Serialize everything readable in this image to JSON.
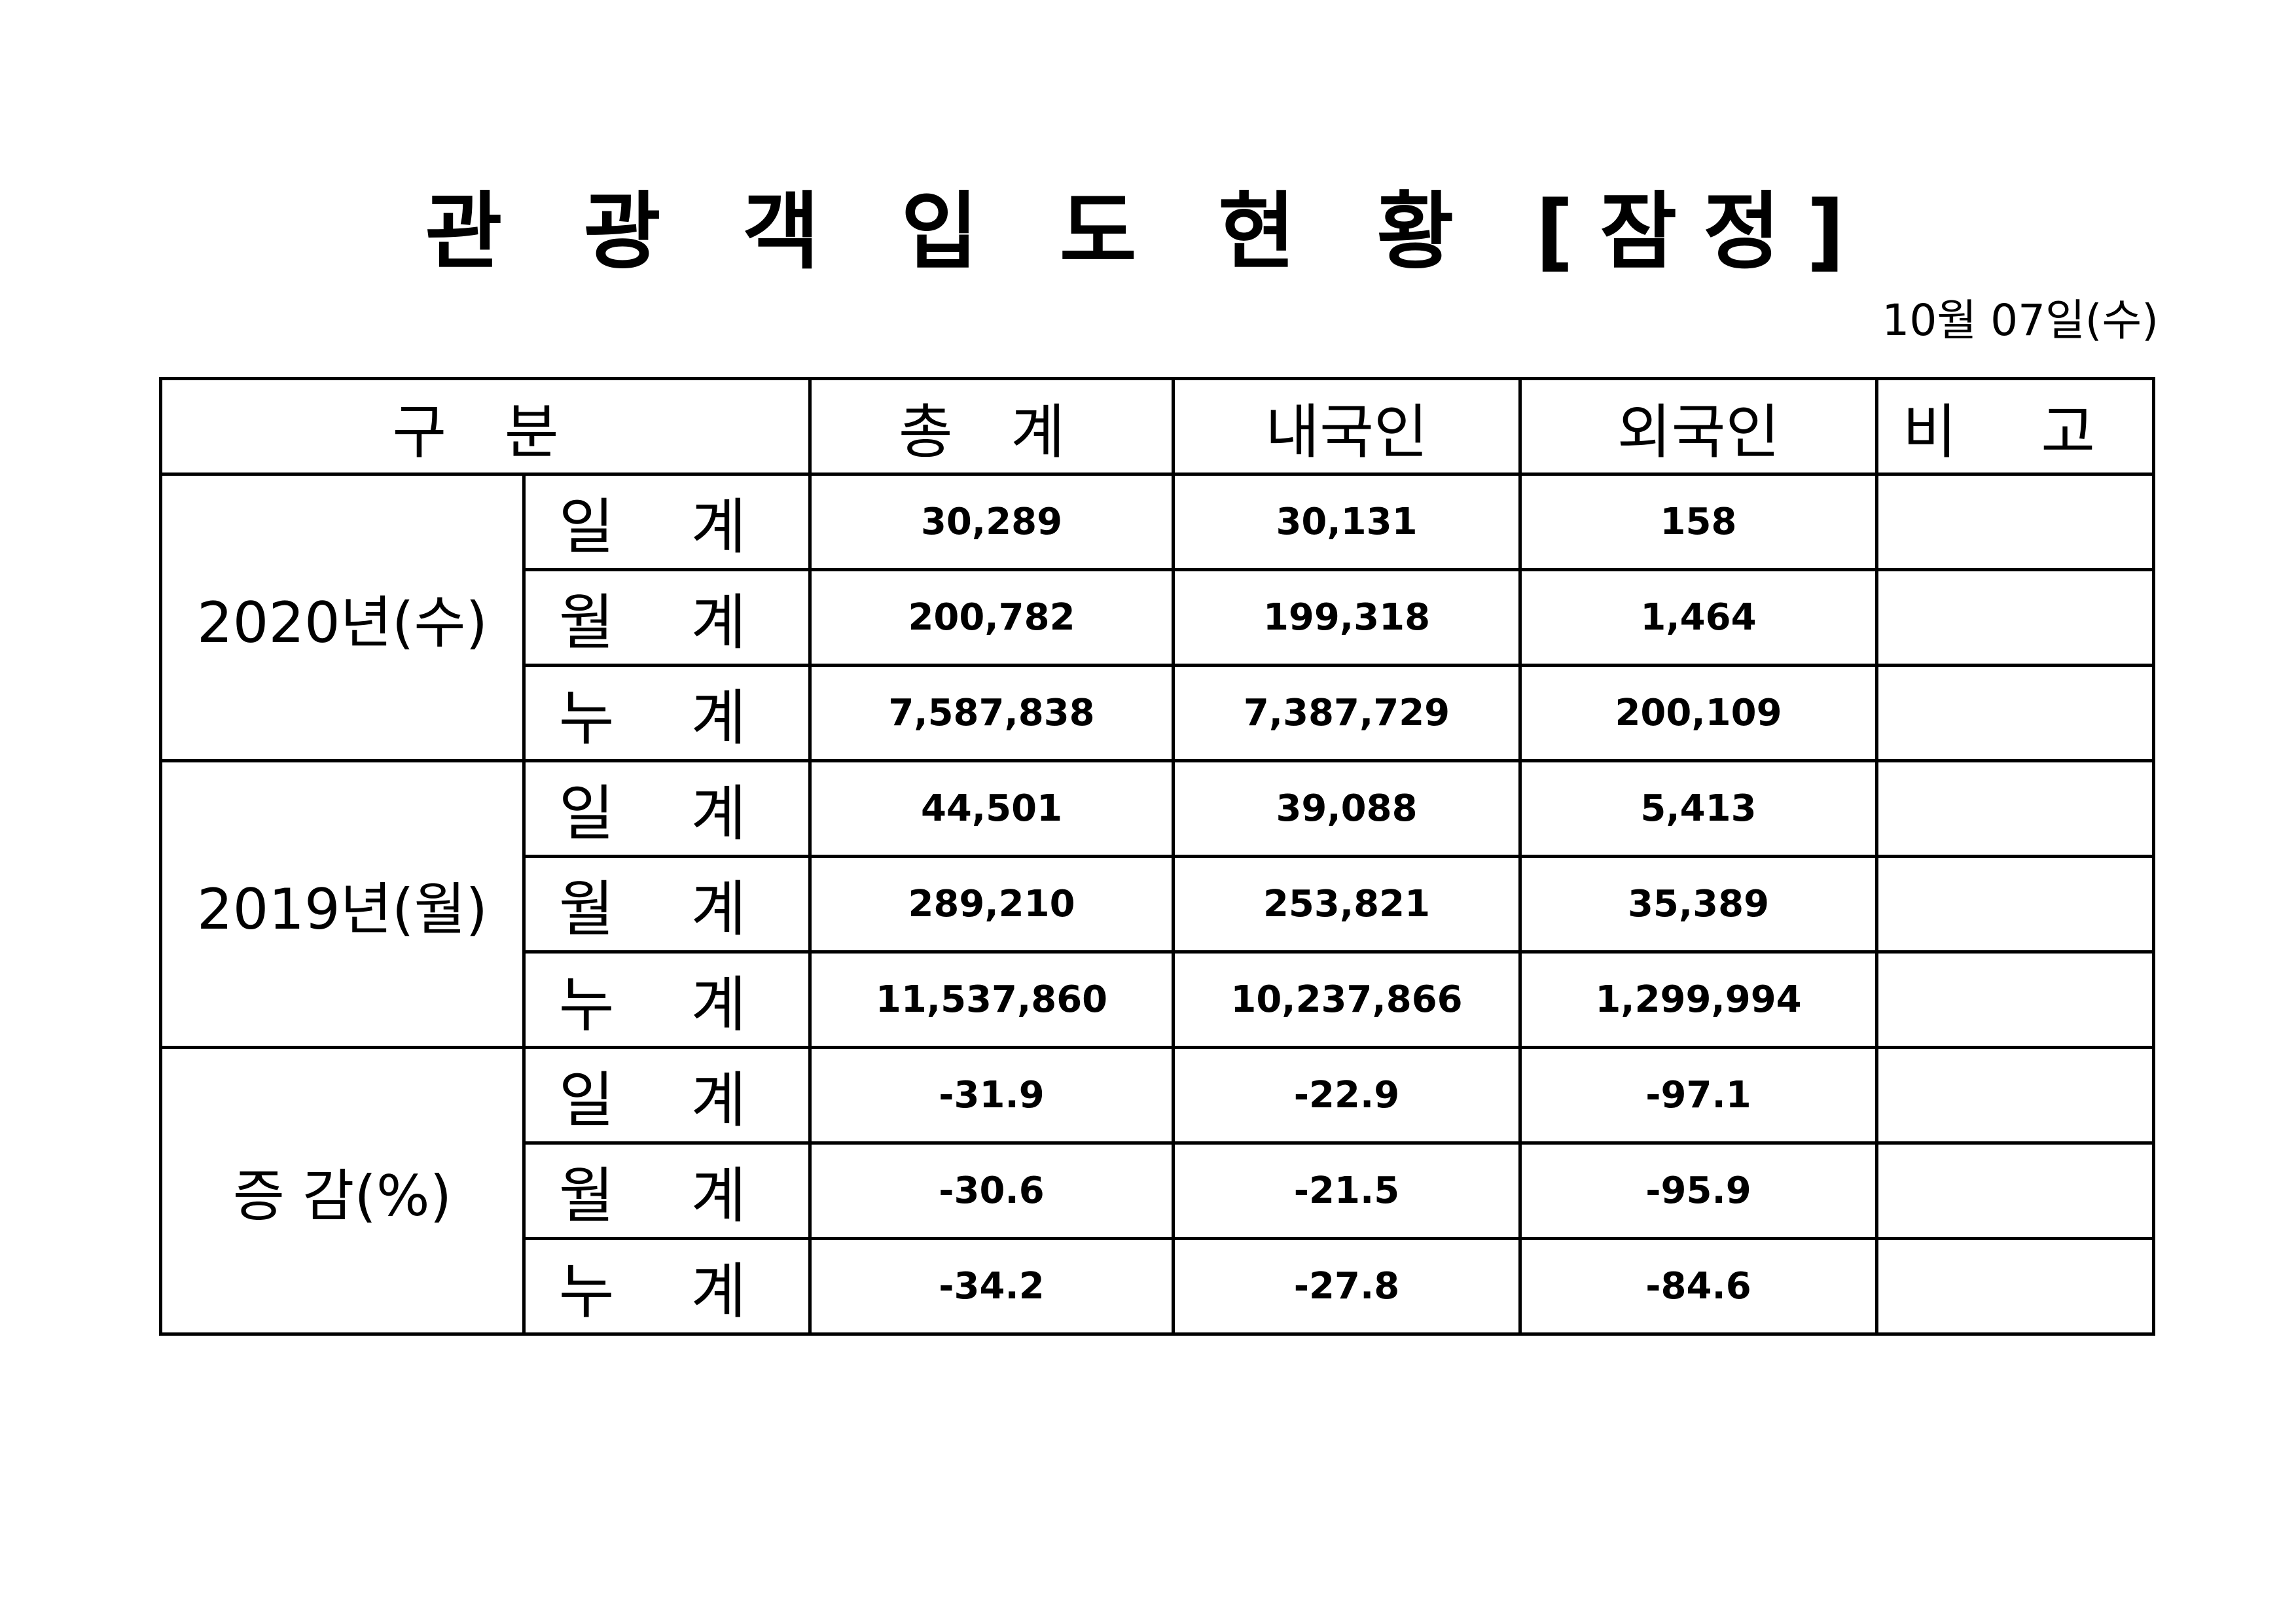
{
  "document": {
    "title": "관 광 객 입 도 현 황 [잠정]",
    "date": "10월 07일(수)"
  },
  "table": {
    "headers": {
      "category": "구 분",
      "total": "총 계",
      "domestic": "내국인",
      "foreign": "외국인",
      "remarks": "비 고"
    },
    "groups": [
      {
        "label": "2020년(수)",
        "rows": [
          {
            "period": "일 계",
            "total": "30,289",
            "domestic": "30,131",
            "foreign": "158",
            "remarks": ""
          },
          {
            "period": "월 계",
            "total": "200,782",
            "domestic": "199,318",
            "foreign": "1,464",
            "remarks": ""
          },
          {
            "period": "누 계",
            "total": "7,587,838",
            "domestic": "7,387,729",
            "foreign": "200,109",
            "remarks": ""
          }
        ]
      },
      {
        "label": "2019년(월)",
        "rows": [
          {
            "period": "일 계",
            "total": "44,501",
            "domestic": "39,088",
            "foreign": "5,413",
            "remarks": ""
          },
          {
            "period": "월 계",
            "total": "289,210",
            "domestic": "253,821",
            "foreign": "35,389",
            "remarks": ""
          },
          {
            "period": "누 계",
            "total": "11,537,860",
            "domestic": "10,237,866",
            "foreign": "1,299,994",
            "remarks": ""
          }
        ]
      },
      {
        "label": "증 감(%)",
        "rows": [
          {
            "period": "일 계",
            "total": "-31.9",
            "domestic": "-22.9",
            "foreign": "-97.1",
            "remarks": ""
          },
          {
            "period": "월 계",
            "total": "-30.6",
            "domestic": "-21.5",
            "foreign": "-95.9",
            "remarks": ""
          },
          {
            "period": "누 계",
            "total": "-34.2",
            "domestic": "-27.8",
            "foreign": "-84.6",
            "remarks": ""
          }
        ]
      }
    ]
  }
}
